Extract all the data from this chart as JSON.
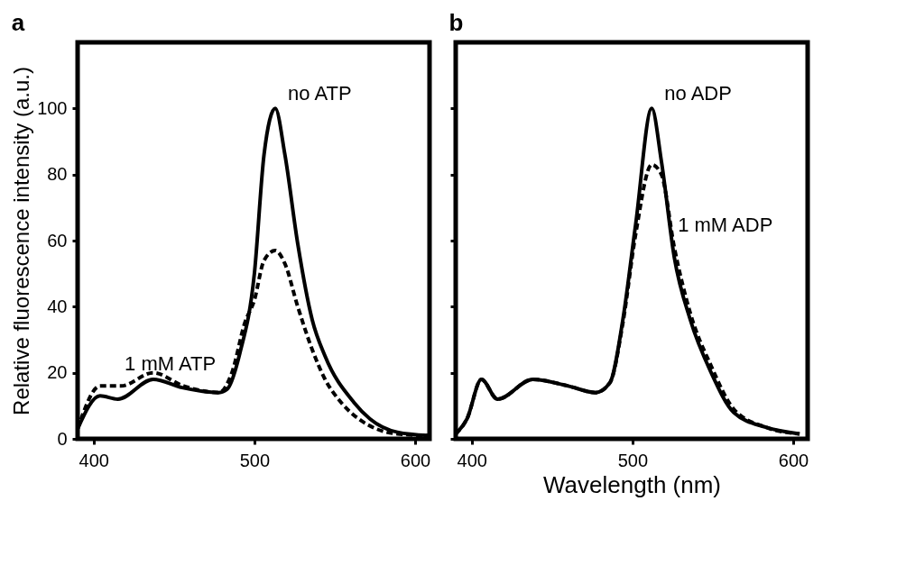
{
  "chart_data": [
    {
      "type": "line",
      "title": "a",
      "ylabel": "Relative fluorescence intensity (a.u.)",
      "xlim": [
        390,
        609
      ],
      "xticks": [
        400,
        500,
        600
      ],
      "ylim": [
        0,
        120
      ],
      "yticks": [
        0,
        20,
        40,
        60,
        80,
        100
      ],
      "series": [
        {
          "name": "no ATP",
          "color": "#000000",
          "line_style": "solid",
          "x": [
            390,
            404,
            415,
            437,
            455,
            478,
            483,
            491,
            500,
            506,
            513,
            519,
            527,
            536,
            544,
            562,
            572,
            589,
            608
          ],
          "values": [
            3,
            13,
            12,
            18,
            15.5,
            14,
            15,
            26,
            50,
            86,
            100,
            86,
            59,
            36,
            25,
            11,
            6,
            2,
            1
          ]
        },
        {
          "name": "1 mM ATP",
          "color": "#000000",
          "line_style": "dashed",
          "x": [
            390,
            404,
            417,
            437,
            456,
            478,
            486,
            494,
            500,
            506,
            513,
            519,
            527,
            536,
            544,
            554,
            565,
            576,
            589,
            609
          ],
          "values": [
            3,
            16,
            16,
            20,
            16,
            14,
            20,
            35,
            42,
            54,
            57,
            53,
            40,
            27,
            18,
            11,
            6,
            3,
            1.5,
            1
          ]
        }
      ]
    },
    {
      "type": "line",
      "title": "b",
      "xlabel": "Wavelength (nm)",
      "xlim": [
        390,
        609
      ],
      "xticks": [
        400,
        500,
        600
      ],
      "ylim": [
        0,
        120
      ],
      "yticks": [
        0,
        20,
        40,
        60,
        80,
        100
      ],
      "tick_labels": "x",
      "series": [
        {
          "name": "no ADP",
          "color": "#000000",
          "line_style": "solid",
          "x": [
            390,
            397,
            406,
            416,
            438,
            460,
            477,
            486,
            494,
            502,
            512,
            518,
            526,
            536,
            549,
            563,
            583,
            604
          ],
          "values": [
            1.5,
            6,
            18,
            12,
            18,
            16,
            14,
            17,
            36,
            65,
            100,
            84,
            55,
            36,
            20,
            8,
            3.5,
            1.5
          ]
        },
        {
          "name": "1 mM ADP",
          "color": "#000000",
          "line_style": "dashed",
          "x": [
            390,
            397,
            406,
            416,
            438,
            460,
            477,
            486,
            494,
            502,
            512,
            518,
            526,
            536,
            549,
            563,
            583,
            604
          ],
          "values": [
            1.5,
            6,
            18,
            12,
            18,
            16,
            14,
            17,
            35,
            62,
            83,
            80,
            58,
            38,
            22,
            9,
            3.5,
            1.5
          ]
        }
      ]
    }
  ]
}
